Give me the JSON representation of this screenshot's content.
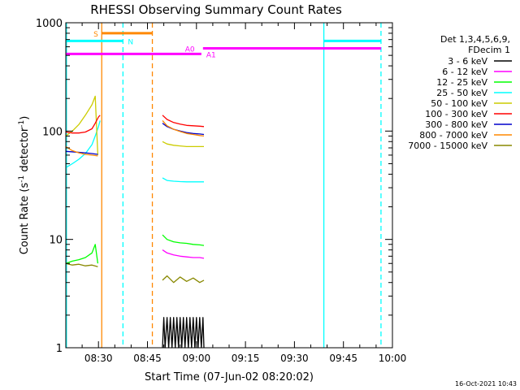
{
  "chart_data": {
    "type": "line",
    "title": "RHESSI Observing Summary Count Rates",
    "xlabel": "Start Time (07-Jun-02 08:20:02)",
    "ylabel_main": "Count Rate (s",
    "ylabel_sup1": "-1",
    "ylabel_mid": " detector",
    "ylabel_sup2": "-1",
    "ylabel_end": ")",
    "footer": "16-Oct-2021 10:43",
    "yscale": "log",
    "ylim": [
      1,
      1000
    ],
    "xlim_min": [
      0,
      100
    ],
    "x_unit": "minutes after 08:20",
    "x_ticks": [
      {
        "m": 10,
        "label": "08:30"
      },
      {
        "m": 25,
        "label": "08:45"
      },
      {
        "m": 40,
        "label": "09:00"
      },
      {
        "m": 55,
        "label": "09:15"
      },
      {
        "m": 70,
        "label": "09:30"
      },
      {
        "m": 85,
        "label": "09:45"
      },
      {
        "m": 100,
        "label": "10:00"
      }
    ],
    "y_ticks": [
      {
        "v": 1,
        "label": "1"
      },
      {
        "v": 10,
        "label": "10"
      },
      {
        "v": 100,
        "label": "100"
      },
      {
        "v": 1000,
        "label": "1000"
      }
    ],
    "legend_header": [
      "Det 1,3,4,5,6,9,",
      "FDecim 1"
    ],
    "legend_position": "right",
    "series": [
      {
        "name": "3 - 6 keV",
        "color": "#000000",
        "segments": [
          [
            [
              29.6,
              1.0
            ],
            [
              30,
              1.9
            ],
            [
              30.4,
              1.0
            ],
            [
              31,
              1.9
            ],
            [
              31.5,
              1.0
            ],
            [
              32,
              1.9
            ],
            [
              32.5,
              1.0
            ],
            [
              33,
              1.9
            ],
            [
              33.5,
              1.0
            ],
            [
              34,
              1.9
            ],
            [
              34.5,
              1.0
            ],
            [
              35,
              1.9
            ],
            [
              35.5,
              1.0
            ],
            [
              36,
              1.9
            ],
            [
              36.5,
              1.0
            ],
            [
              37,
              1.9
            ],
            [
              37.5,
              1.0
            ],
            [
              38,
              1.9
            ],
            [
              38.5,
              1.0
            ],
            [
              39,
              1.9
            ],
            [
              39.5,
              1.0
            ],
            [
              40,
              1.9
            ],
            [
              40.5,
              1.0
            ],
            [
              41,
              1.9
            ],
            [
              41.5,
              1.0
            ],
            [
              42,
              1.9
            ],
            [
              42.3,
              1.0
            ]
          ]
        ]
      },
      {
        "name": "6 - 12 keV",
        "color": "#ff00ff",
        "segments": [
          [
            [
              29.6,
              8.0
            ],
            [
              31,
              7.5
            ],
            [
              33,
              7.2
            ],
            [
              35,
              7.0
            ],
            [
              37,
              6.9
            ],
            [
              39,
              6.8
            ],
            [
              41,
              6.8
            ],
            [
              42.3,
              6.7
            ]
          ]
        ]
      },
      {
        "name": "12 - 25 keV",
        "color": "#00ff00",
        "segments": [
          [
            [
              0,
              6.0
            ],
            [
              2,
              6.3
            ],
            [
              4,
              6.5
            ],
            [
              6,
              6.8
            ],
            [
              8,
              7.5
            ],
            [
              9,
              9.0
            ],
            [
              9.8,
              6.0
            ]
          ],
          [
            [
              29.6,
              11
            ],
            [
              31,
              10
            ],
            [
              33,
              9.5
            ],
            [
              35,
              9.3
            ],
            [
              37,
              9.2
            ],
            [
              39,
              9.0
            ],
            [
              41,
              8.9
            ],
            [
              42.3,
              8.8
            ]
          ]
        ]
      },
      {
        "name": "25 - 50 keV",
        "color": "#00ffff",
        "segments": [
          [
            [
              0,
              46
            ],
            [
              2,
              50
            ],
            [
              4,
              55
            ],
            [
              6,
              62
            ],
            [
              8,
              75
            ],
            [
              9,
              90
            ],
            [
              10,
              110
            ],
            [
              10.5,
              125
            ]
          ],
          [
            [
              29.6,
              37
            ],
            [
              31,
              35
            ],
            [
              33,
              34.5
            ],
            [
              35,
              34.2
            ],
            [
              37,
              34
            ],
            [
              39,
              34
            ],
            [
              41,
              34
            ],
            [
              42.3,
              34
            ]
          ]
        ]
      },
      {
        "name": "50 - 100 keV",
        "color": "#cccc00",
        "segments": [
          [
            [
              0,
              90
            ],
            [
              2,
              100
            ],
            [
              4,
              115
            ],
            [
              6,
              140
            ],
            [
              8,
              175
            ],
            [
              9,
              210
            ],
            [
              9.8,
              60
            ]
          ],
          [
            [
              29.6,
              80
            ],
            [
              31,
              76
            ],
            [
              33,
              74
            ],
            [
              35,
              73
            ],
            [
              37,
              72
            ],
            [
              39,
              72
            ],
            [
              41,
              72
            ],
            [
              42.3,
              72
            ]
          ]
        ]
      },
      {
        "name": "100 - 300 keV",
        "color": "#ff0000",
        "segments": [
          [
            [
              0,
              98
            ],
            [
              2,
              96
            ],
            [
              4,
              96
            ],
            [
              6,
              98
            ],
            [
              8,
              105
            ],
            [
              9,
              118
            ],
            [
              10,
              135
            ],
            [
              10.5,
              140
            ]
          ],
          [
            [
              29.6,
              140
            ],
            [
              31,
              128
            ],
            [
              33,
              120
            ],
            [
              35,
              116
            ],
            [
              37,
              113
            ],
            [
              39,
              112
            ],
            [
              41,
              111
            ],
            [
              42.3,
              110
            ]
          ]
        ]
      },
      {
        "name": "300 - 800 keV",
        "color": "#0000cc",
        "segments": [
          [
            [
              0,
              65
            ],
            [
              3,
              64
            ],
            [
              6,
              63
            ],
            [
              8,
              62
            ],
            [
              9.8,
              61
            ]
          ],
          [
            [
              29.6,
              118
            ],
            [
              31,
              110
            ],
            [
              33,
              104
            ],
            [
              35,
              100
            ],
            [
              37,
              97
            ],
            [
              39,
              95
            ],
            [
              41,
              94
            ],
            [
              42.3,
              93
            ]
          ]
        ]
      },
      {
        "name": "800 - 7000 keV",
        "color": "#ff8800",
        "segments": [
          [
            [
              0,
              72
            ],
            [
              2,
              66
            ],
            [
              4,
              63
            ],
            [
              6,
              61
            ],
            [
              8,
              60
            ],
            [
              9.8,
              59
            ]
          ],
          [
            [
              29.6,
              125
            ],
            [
              31,
              112
            ],
            [
              33,
              104
            ],
            [
              35,
              99
            ],
            [
              37,
              95
            ],
            [
              39,
              93
            ],
            [
              41,
              91
            ],
            [
              42.3,
              90
            ]
          ]
        ]
      },
      {
        "name": "7000 - 15000 keV",
        "color": "#888800",
        "segments": [
          [
            [
              0,
              6.0
            ],
            [
              2,
              5.8
            ],
            [
              4,
              5.9
            ],
            [
              6,
              5.7
            ],
            [
              8,
              5.8
            ],
            [
              9.8,
              5.6
            ]
          ],
          [
            [
              29.6,
              4.2
            ],
            [
              31,
              4.6
            ],
            [
              33,
              4.0
            ],
            [
              35,
              4.5
            ],
            [
              37,
              4.1
            ],
            [
              39,
              4.4
            ],
            [
              41,
              4.0
            ],
            [
              42.3,
              4.2
            ]
          ]
        ]
      }
    ],
    "flags": [
      {
        "label": "S",
        "color": "#ff8800",
        "y": 800,
        "x0": 11,
        "x1": 26.5,
        "label_x": 8.5
      },
      {
        "label": "N",
        "color": "#00ffff",
        "y": 680,
        "x0": 0,
        "x1": 17.5,
        "label_x": 19
      },
      {
        "label": "N",
        "color": "#00ffff",
        "y": 680,
        "x0": 79,
        "x1": 96.5,
        "label_x": null
      },
      {
        "label": "A0",
        "color": "#ff00ff",
        "y": 580,
        "x0": 42,
        "x1": 96.5,
        "label_x": 36.5
      },
      {
        "label": "A1",
        "color": "#ff00ff",
        "y": 515,
        "x0": 0,
        "x1": 41.5,
        "label_x": 43
      }
    ],
    "vlines": [
      {
        "m": 11,
        "color": "#ff8800",
        "dashed": false
      },
      {
        "m": 17.5,
        "color": "#00ffff",
        "dashed": true
      },
      {
        "m": 26.5,
        "color": "#ff8800",
        "dashed": true
      },
      {
        "m": 79,
        "color": "#00ffff",
        "dashed": false
      },
      {
        "m": 96.5,
        "color": "#00ffff",
        "dashed": true
      },
      {
        "m": 0.2,
        "color": "#00ffff",
        "dashed": false
      }
    ]
  }
}
